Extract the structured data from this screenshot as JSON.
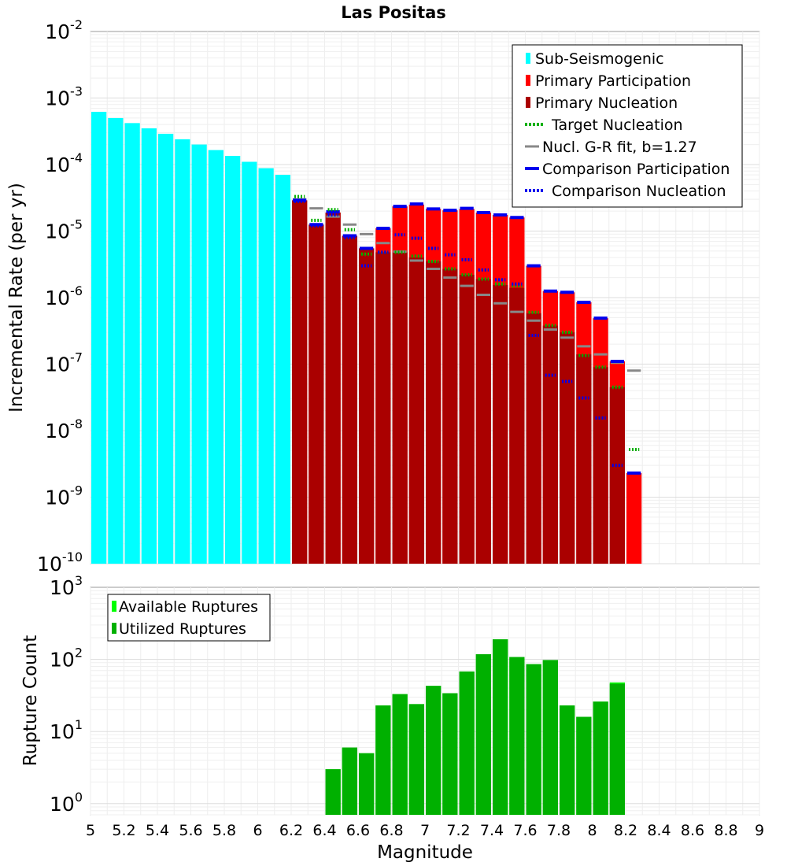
{
  "chart_data": [
    {
      "type": "bar",
      "title": "Las Positas",
      "xlabel": "",
      "ylabel": "Incremental Rate (per yr)",
      "xlim": [
        5,
        9
      ],
      "ylim": [
        1e-10,
        0.01
      ],
      "yscale": "log",
      "ytick_exponents": [
        "-10",
        "-9",
        "-8",
        "-7",
        "-6",
        "-5",
        "-4",
        "-3",
        "-2"
      ],
      "ytick_base": "10",
      "bin_width": 0.1,
      "legend_position": "top-right",
      "colors": {
        "sub_seismogenic": "#00ffff",
        "primary_participation": "#ff0000",
        "primary_nucleation": "#aa0000",
        "target_nucleation": "#00b000",
        "gr_fit": "#888888",
        "comparison": "#0000ee"
      },
      "legend": [
        {
          "label": "Sub-Seismogenic",
          "style": "cyan-box"
        },
        {
          "label": "Primary Participation",
          "style": "red-box"
        },
        {
          "label": "Primary Nucleation",
          "style": "darkred-box"
        },
        {
          "label": "Target Nucleation",
          "style": "green-dots"
        },
        {
          "label": "Nucl. G-R fit, b=1.27",
          "style": "gray-line"
        },
        {
          "label": "Comparison Participation",
          "style": "blue-line"
        },
        {
          "label": "Comparison Nucleation",
          "style": "blue-dots"
        }
      ],
      "sub_seismogenic": {
        "x": [
          5.05,
          5.15,
          5.25,
          5.35,
          5.45,
          5.55,
          5.65,
          5.75,
          5.85,
          5.95,
          6.05,
          6.15
        ],
        "values": [
          0.00062,
          0.0005,
          0.00042,
          0.00035,
          0.00029,
          0.00024,
          0.0002,
          0.000165,
          0.000135,
          0.00011,
          8.8e-05,
          7e-05
        ]
      },
      "mags": [
        6.25,
        6.35,
        6.45,
        6.55,
        6.65,
        6.75,
        6.85,
        6.95,
        7.05,
        7.15,
        7.25,
        7.35,
        7.45,
        7.55,
        7.65,
        7.75,
        7.85,
        7.95,
        8.05,
        8.15,
        8.25
      ],
      "participation": [
        2.9e-05,
        1.25e-05,
        1.9e-05,
        8.5e-06,
        5.5e-06,
        1.1e-05,
        2.35e-05,
        2.5e-05,
        2.15e-05,
        2.05e-05,
        2.15e-05,
        1.9e-05,
        1.75e-05,
        1.6e-05,
        3e-06,
        1.25e-06,
        1.2e-06,
        8.5e-07,
        4.9e-07,
        1.1e-07,
        2.3e-09
      ],
      "nucleation": [
        2.9e-05,
        1.25e-05,
        1.9e-05,
        8.5e-06,
        5.5e-06,
        4.8e-06,
        4.8e-06,
        4e-06,
        3.5e-06,
        2.7e-06,
        2.2e-06,
        1.9e-06,
        1.55e-06,
        1.4e-06,
        5.8e-07,
        3.8e-07,
        3e-07,
        1.4e-07,
        9e-08,
        4.5e-08,
        0
      ],
      "target_nucleation": [
        3.3e-05,
        1.45e-05,
        2.1e-05,
        1.05e-05,
        4.5e-06,
        4.8e-06,
        4.8e-06,
        4.2e-06,
        3.5e-06,
        2.7e-06,
        2.2e-06,
        1.9e-06,
        1.6e-06,
        1.5e-06,
        6e-07,
        3.8e-07,
        3e-07,
        1.35e-07,
        9e-08,
        4.5e-08,
        5.2e-09
      ],
      "gr_fit": [
        3e-05,
        2.2e-05,
        1.65e-05,
        1.25e-05,
        9e-06,
        6.6e-06,
        4.9e-06,
        3.6e-06,
        2.7e-06,
        2e-06,
        1.5e-06,
        1.1e-06,
        8.2e-07,
        6.1e-07,
        4.5e-07,
        3.3e-07,
        2.5e-07,
        1.85e-07,
        1.4e-07,
        1.05e-07,
        8e-08
      ],
      "comparison_participation": [
        2.9e-05,
        1.25e-05,
        1.95e-05,
        8.5e-06,
        5.5e-06,
        1.1e-05,
        2.35e-05,
        2.55e-05,
        2.15e-05,
        2.05e-05,
        2.2e-05,
        1.9e-05,
        1.75e-05,
        1.6e-05,
        3e-06,
        1.25e-06,
        1.2e-06,
        8.5e-07,
        4.9e-07,
        1.1e-07,
        2.3e-09
      ],
      "comparison_nucleation": [
        2.8e-05,
        1.2e-05,
        1.75e-05,
        8e-06,
        3e-06,
        4.8e-06,
        8.8e-06,
        7.8e-06,
        5.5e-06,
        4.4e-06,
        3.7e-06,
        2.6e-06,
        1.85e-06,
        1.6e-06,
        2.7e-07,
        6.8e-08,
        5.5e-08,
        3.1e-08,
        1.55e-08,
        3e-09,
        0
      ]
    },
    {
      "type": "bar",
      "title": "",
      "xlabel": "Magnitude",
      "ylabel": "Rupture Count",
      "xlim": [
        5,
        9
      ],
      "ylim": [
        0.7,
        1000
      ],
      "yscale": "log",
      "ytick_exponents": [
        "0",
        "1",
        "2",
        "3"
      ],
      "ytick_base": "10",
      "xticks": [
        "5",
        "5.2",
        "5.4",
        "5.6",
        "5.8",
        "6",
        "6.2",
        "6.4",
        "6.6",
        "6.8",
        "7",
        "7.2",
        "7.4",
        "7.6",
        "7.8",
        "8",
        "8.2",
        "8.4",
        "8.6",
        "8.8",
        "9"
      ],
      "bin_width": 0.1,
      "legend_position": "top-left",
      "colors": {
        "available": "#00ff00",
        "utilized": "#00b000"
      },
      "legend": [
        {
          "label": "Available Ruptures",
          "style": "bright-green-box"
        },
        {
          "label": "Utilized Ruptures",
          "style": "green-box"
        }
      ],
      "mags": [
        6.45,
        6.55,
        6.65,
        6.75,
        6.85,
        6.95,
        7.05,
        7.15,
        7.25,
        7.35,
        7.45,
        7.55,
        7.65,
        7.75,
        7.85,
        7.95,
        8.05,
        8.15
      ],
      "available": [
        3,
        6,
        5,
        23,
        33,
        24,
        43,
        34,
        68,
        118,
        190,
        108,
        86,
        98,
        23,
        16,
        26,
        48
      ],
      "utilized": [
        3,
        6,
        5,
        23,
        33,
        24,
        43,
        34,
        68,
        118,
        190,
        108,
        86,
        98,
        23,
        16,
        26,
        46
      ]
    }
  ]
}
